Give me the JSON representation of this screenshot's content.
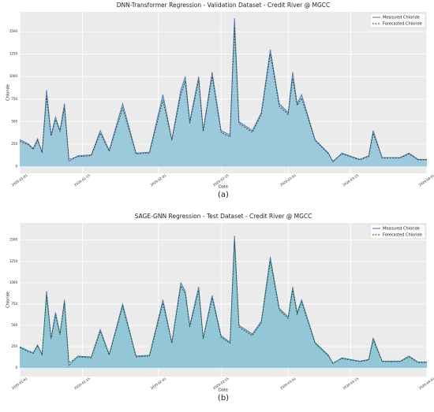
{
  "chart_data": [
    {
      "type": "line",
      "title": "DNN-Transformer Regression - Validation Dataset - Credit River @ MGCC",
      "xlabel": "Date",
      "ylabel": "Chloride",
      "panel_label": "(a)",
      "x": [
        "2020-01-01",
        "2020-01-03",
        "2020-01-04",
        "2020-01-05",
        "2020-01-06",
        "2020-01-07",
        "2020-01-08",
        "2020-01-09",
        "2020-01-10",
        "2020-01-11",
        "2020-01-12",
        "2020-01-14",
        "2020-01-17",
        "2020-01-19",
        "2020-01-21",
        "2020-01-24",
        "2020-01-27",
        "2020-01-30",
        "2020-02-02",
        "2020-02-04",
        "2020-02-06",
        "2020-02-07",
        "2020-02-08",
        "2020-02-10",
        "2020-02-11",
        "2020-02-13",
        "2020-02-15",
        "2020-02-17",
        "2020-02-18",
        "2020-02-19",
        "2020-02-22",
        "2020-02-24",
        "2020-02-26",
        "2020-02-28",
        "2020-03-01",
        "2020-03-02",
        "2020-03-03",
        "2020-03-04",
        "2020-03-07",
        "2020-03-10",
        "2020-03-11",
        "2020-03-13",
        "2020-03-17",
        "2020-03-19",
        "2020-03-20",
        "2020-03-22",
        "2020-03-26",
        "2020-03-28",
        "2020-03-30",
        "2020-04-01"
      ],
      "series": [
        {
          "name": "Measured Chloride",
          "color": "#4c72b0",
          "values": [
            300,
            250,
            200,
            310,
            150,
            850,
            350,
            550,
            400,
            700,
            60,
            120,
            130,
            400,
            180,
            700,
            150,
            160,
            800,
            300,
            850,
            1000,
            500,
            1000,
            400,
            1050,
            400,
            350,
            1650,
            500,
            400,
            600,
            1300,
            700,
            600,
            1050,
            700,
            800,
            300,
            150,
            50,
            150,
            80,
            120,
            400,
            100,
            100,
            150,
            80,
            80
          ]
        },
        {
          "name": "Forecasted Chloride",
          "color": "#2e4a2e",
          "values": [
            280,
            240,
            190,
            290,
            160,
            780,
            340,
            520,
            390,
            650,
            80,
            110,
            120,
            370,
            170,
            650,
            140,
            150,
            740,
            290,
            800,
            950,
            480,
            960,
            390,
            1000,
            380,
            330,
            1550,
            480,
            380,
            580,
            1250,
            670,
            580,
            980,
            680,
            760,
            290,
            140,
            60,
            140,
            75,
            110,
            370,
            95,
            95,
            140,
            75,
            75
          ]
        }
      ],
      "xlim": [
        "2020-01-01",
        "2020-04-01"
      ],
      "xticks": [
        "2020-01-01",
        "2020-01-15",
        "2020-02-01",
        "2020-02-15",
        "2020-03-01",
        "2020-03-15",
        "2020-04-01"
      ],
      "ylim": [
        -75,
        1720
      ],
      "yticks": [
        0,
        250,
        500,
        750,
        1000,
        1250,
        1500
      ],
      "grid": true,
      "legend": "upper right",
      "area_color": "#9dc9dc"
    },
    {
      "type": "line",
      "title": "SAGE-GNN Regression - Test Dataset - Credit River @ MGCC",
      "xlabel": "Date",
      "ylabel": "Chloride",
      "panel_label": "(b)",
      "x": [
        "2020-01-01",
        "2020-01-03",
        "2020-01-04",
        "2020-01-05",
        "2020-01-06",
        "2020-01-07",
        "2020-01-08",
        "2020-01-09",
        "2020-01-10",
        "2020-01-11",
        "2020-01-12",
        "2020-01-14",
        "2020-01-17",
        "2020-01-19",
        "2020-01-21",
        "2020-01-24",
        "2020-01-27",
        "2020-01-30",
        "2020-02-02",
        "2020-02-04",
        "2020-02-06",
        "2020-02-07",
        "2020-02-08",
        "2020-02-10",
        "2020-02-11",
        "2020-02-13",
        "2020-02-15",
        "2020-02-17",
        "2020-02-18",
        "2020-02-19",
        "2020-02-22",
        "2020-02-24",
        "2020-02-26",
        "2020-02-28",
        "2020-03-01",
        "2020-03-02",
        "2020-03-03",
        "2020-03-04",
        "2020-03-07",
        "2020-03-10",
        "2020-03-11",
        "2020-03-13",
        "2020-03-17",
        "2020-03-19",
        "2020-03-20",
        "2020-03-22",
        "2020-03-26",
        "2020-03-28",
        "2020-03-30",
        "2020-04-01"
      ],
      "series": [
        {
          "name": "Measured Chloride",
          "color": "#4c72b0",
          "values": [
            250,
            200,
            180,
            270,
            150,
            900,
            350,
            650,
            400,
            800,
            30,
            140,
            130,
            450,
            160,
            750,
            140,
            150,
            800,
            300,
            1000,
            900,
            500,
            950,
            350,
            850,
            380,
            300,
            1550,
            500,
            400,
            550,
            1300,
            700,
            600,
            950,
            650,
            800,
            300,
            150,
            50,
            120,
            80,
            100,
            350,
            80,
            80,
            140,
            70,
            70
          ]
        },
        {
          "name": "Forecasted Chloride",
          "color": "#1e5b1e",
          "values": [
            240,
            190,
            170,
            260,
            160,
            850,
            340,
            620,
            390,
            760,
            60,
            130,
            120,
            430,
            150,
            720,
            130,
            140,
            760,
            290,
            960,
            870,
            480,
            910,
            340,
            820,
            360,
            290,
            1480,
            480,
            380,
            530,
            1250,
            680,
            580,
            910,
            630,
            770,
            290,
            140,
            60,
            110,
            75,
            95,
            330,
            75,
            75,
            130,
            65,
            65
          ]
        }
      ],
      "xlim": [
        "2020-01-01",
        "2020-04-01"
      ],
      "xticks": [
        "2020-01-01",
        "2020-01-15",
        "2020-02-01",
        "2020-02-15",
        "2020-03-01",
        "2020-03-15",
        "2020-04-01"
      ],
      "ylim": [
        -100,
        1700
      ],
      "yticks": [
        0,
        250,
        500,
        750,
        1000,
        1250,
        1500
      ],
      "grid": true,
      "legend": "upper right",
      "area_color": "#93c6d6"
    }
  ]
}
